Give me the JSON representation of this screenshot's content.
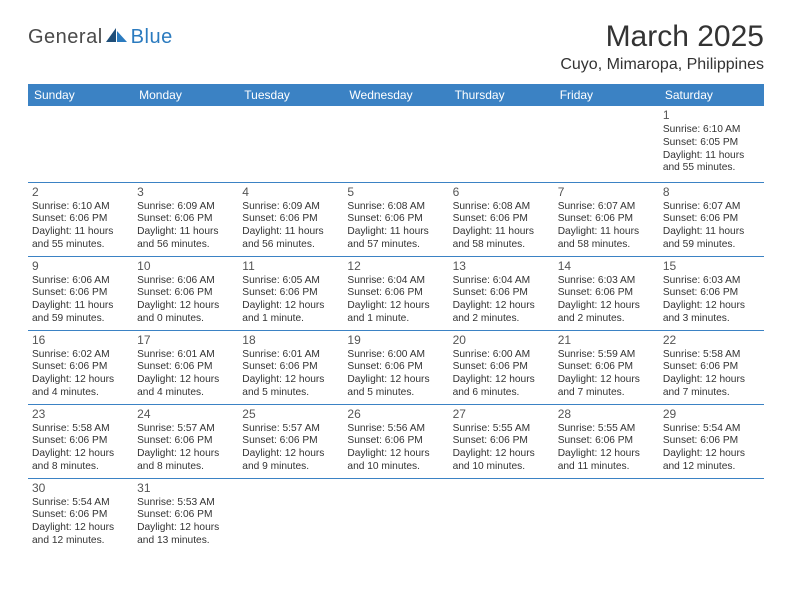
{
  "branding": {
    "word1": "General",
    "word2": "Blue"
  },
  "title": "March 2025",
  "location": "Cuyo, Mimaropa, Philippines",
  "colors": {
    "header_bg": "#3b82c4",
    "header_text": "#ffffff",
    "row_border": "#3b82c4",
    "brand_gray": "#4a4a4a",
    "brand_blue": "#2b7bbf"
  },
  "daysOfWeek": [
    "Sunday",
    "Monday",
    "Tuesday",
    "Wednesday",
    "Thursday",
    "Friday",
    "Saturday"
  ],
  "weeks": [
    [
      null,
      null,
      null,
      null,
      null,
      null,
      {
        "day": "1",
        "sunrise": "Sunrise: 6:10 AM",
        "sunset": "Sunset: 6:05 PM",
        "daylight": "Daylight: 11 hours and 55 minutes."
      }
    ],
    [
      {
        "day": "2",
        "sunrise": "Sunrise: 6:10 AM",
        "sunset": "Sunset: 6:06 PM",
        "daylight": "Daylight: 11 hours and 55 minutes."
      },
      {
        "day": "3",
        "sunrise": "Sunrise: 6:09 AM",
        "sunset": "Sunset: 6:06 PM",
        "daylight": "Daylight: 11 hours and 56 minutes."
      },
      {
        "day": "4",
        "sunrise": "Sunrise: 6:09 AM",
        "sunset": "Sunset: 6:06 PM",
        "daylight": "Daylight: 11 hours and 56 minutes."
      },
      {
        "day": "5",
        "sunrise": "Sunrise: 6:08 AM",
        "sunset": "Sunset: 6:06 PM",
        "daylight": "Daylight: 11 hours and 57 minutes."
      },
      {
        "day": "6",
        "sunrise": "Sunrise: 6:08 AM",
        "sunset": "Sunset: 6:06 PM",
        "daylight": "Daylight: 11 hours and 58 minutes."
      },
      {
        "day": "7",
        "sunrise": "Sunrise: 6:07 AM",
        "sunset": "Sunset: 6:06 PM",
        "daylight": "Daylight: 11 hours and 58 minutes."
      },
      {
        "day": "8",
        "sunrise": "Sunrise: 6:07 AM",
        "sunset": "Sunset: 6:06 PM",
        "daylight": "Daylight: 11 hours and 59 minutes."
      }
    ],
    [
      {
        "day": "9",
        "sunrise": "Sunrise: 6:06 AM",
        "sunset": "Sunset: 6:06 PM",
        "daylight": "Daylight: 11 hours and 59 minutes."
      },
      {
        "day": "10",
        "sunrise": "Sunrise: 6:06 AM",
        "sunset": "Sunset: 6:06 PM",
        "daylight": "Daylight: 12 hours and 0 minutes."
      },
      {
        "day": "11",
        "sunrise": "Sunrise: 6:05 AM",
        "sunset": "Sunset: 6:06 PM",
        "daylight": "Daylight: 12 hours and 1 minute."
      },
      {
        "day": "12",
        "sunrise": "Sunrise: 6:04 AM",
        "sunset": "Sunset: 6:06 PM",
        "daylight": "Daylight: 12 hours and 1 minute."
      },
      {
        "day": "13",
        "sunrise": "Sunrise: 6:04 AM",
        "sunset": "Sunset: 6:06 PM",
        "daylight": "Daylight: 12 hours and 2 minutes."
      },
      {
        "day": "14",
        "sunrise": "Sunrise: 6:03 AM",
        "sunset": "Sunset: 6:06 PM",
        "daylight": "Daylight: 12 hours and 2 minutes."
      },
      {
        "day": "15",
        "sunrise": "Sunrise: 6:03 AM",
        "sunset": "Sunset: 6:06 PM",
        "daylight": "Daylight: 12 hours and 3 minutes."
      }
    ],
    [
      {
        "day": "16",
        "sunrise": "Sunrise: 6:02 AM",
        "sunset": "Sunset: 6:06 PM",
        "daylight": "Daylight: 12 hours and 4 minutes."
      },
      {
        "day": "17",
        "sunrise": "Sunrise: 6:01 AM",
        "sunset": "Sunset: 6:06 PM",
        "daylight": "Daylight: 12 hours and 4 minutes."
      },
      {
        "day": "18",
        "sunrise": "Sunrise: 6:01 AM",
        "sunset": "Sunset: 6:06 PM",
        "daylight": "Daylight: 12 hours and 5 minutes."
      },
      {
        "day": "19",
        "sunrise": "Sunrise: 6:00 AM",
        "sunset": "Sunset: 6:06 PM",
        "daylight": "Daylight: 12 hours and 5 minutes."
      },
      {
        "day": "20",
        "sunrise": "Sunrise: 6:00 AM",
        "sunset": "Sunset: 6:06 PM",
        "daylight": "Daylight: 12 hours and 6 minutes."
      },
      {
        "day": "21",
        "sunrise": "Sunrise: 5:59 AM",
        "sunset": "Sunset: 6:06 PM",
        "daylight": "Daylight: 12 hours and 7 minutes."
      },
      {
        "day": "22",
        "sunrise": "Sunrise: 5:58 AM",
        "sunset": "Sunset: 6:06 PM",
        "daylight": "Daylight: 12 hours and 7 minutes."
      }
    ],
    [
      {
        "day": "23",
        "sunrise": "Sunrise: 5:58 AM",
        "sunset": "Sunset: 6:06 PM",
        "daylight": "Daylight: 12 hours and 8 minutes."
      },
      {
        "day": "24",
        "sunrise": "Sunrise: 5:57 AM",
        "sunset": "Sunset: 6:06 PM",
        "daylight": "Daylight: 12 hours and 8 minutes."
      },
      {
        "day": "25",
        "sunrise": "Sunrise: 5:57 AM",
        "sunset": "Sunset: 6:06 PM",
        "daylight": "Daylight: 12 hours and 9 minutes."
      },
      {
        "day": "26",
        "sunrise": "Sunrise: 5:56 AM",
        "sunset": "Sunset: 6:06 PM",
        "daylight": "Daylight: 12 hours and 10 minutes."
      },
      {
        "day": "27",
        "sunrise": "Sunrise: 5:55 AM",
        "sunset": "Sunset: 6:06 PM",
        "daylight": "Daylight: 12 hours and 10 minutes."
      },
      {
        "day": "28",
        "sunrise": "Sunrise: 5:55 AM",
        "sunset": "Sunset: 6:06 PM",
        "daylight": "Daylight: 12 hours and 11 minutes."
      },
      {
        "day": "29",
        "sunrise": "Sunrise: 5:54 AM",
        "sunset": "Sunset: 6:06 PM",
        "daylight": "Daylight: 12 hours and 12 minutes."
      }
    ],
    [
      {
        "day": "30",
        "sunrise": "Sunrise: 5:54 AM",
        "sunset": "Sunset: 6:06 PM",
        "daylight": "Daylight: 12 hours and 12 minutes."
      },
      {
        "day": "31",
        "sunrise": "Sunrise: 5:53 AM",
        "sunset": "Sunset: 6:06 PM",
        "daylight": "Daylight: 12 hours and 13 minutes."
      },
      null,
      null,
      null,
      null,
      null
    ]
  ]
}
